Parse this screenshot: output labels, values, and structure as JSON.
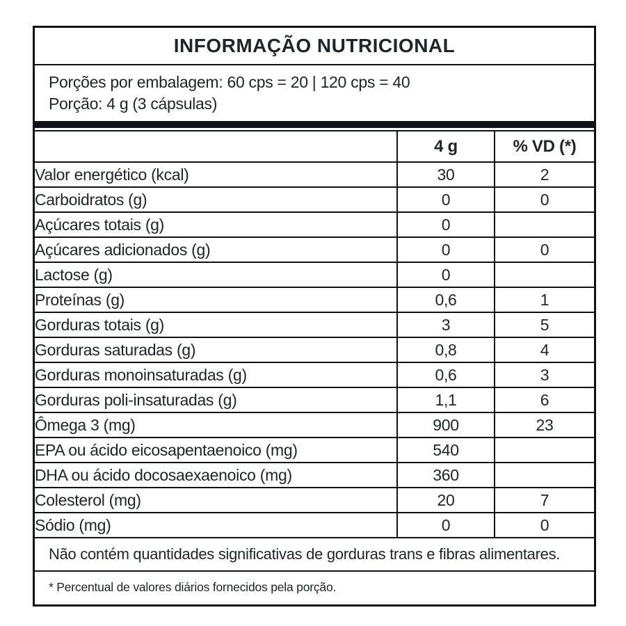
{
  "title": "INFORMAÇÃO NUTRICIONAL",
  "serving_info": {
    "line1": "Porções por embalagem: 60 cps = 20 | 120 cps = 40",
    "line2": "Porção: 4 g (3 cápsulas)"
  },
  "table": {
    "columns": [
      "",
      "4 g",
      "% VD (*)"
    ],
    "rows": [
      {
        "label": "Valor energético (kcal)",
        "amount": "30",
        "vd": "2",
        "indent": 0
      },
      {
        "label": "Carboidratos (g)",
        "amount": "0",
        "vd": "0",
        "indent": 0
      },
      {
        "label": "Açúcares totais (g)",
        "amount": "0",
        "vd": "",
        "indent": 2
      },
      {
        "label": "Açúcares adicionados (g)",
        "amount": "0",
        "vd": "0",
        "indent": 3
      },
      {
        "label": "Lactose (g)",
        "amount": "0",
        "vd": "",
        "indent": 3
      },
      {
        "label": "Proteínas (g)",
        "amount": "0,6",
        "vd": "1",
        "indent": 0
      },
      {
        "label": "Gorduras totais (g)",
        "amount": "3",
        "vd": "5",
        "indent": 0
      },
      {
        "label": "Gorduras saturadas (g)",
        "amount": "0,8",
        "vd": "4",
        "indent": 1
      },
      {
        "label": "Gorduras monoinsaturadas (g)",
        "amount": "0,6",
        "vd": "3",
        "indent": 1
      },
      {
        "label": "Gorduras poli-insaturadas (g)",
        "amount": "1,1",
        "vd": "6",
        "indent": 1
      },
      {
        "label": "Ômega 3 (mg)",
        "amount": "900",
        "vd": "23",
        "indent": 2
      },
      {
        "label": "EPA ou ácido eicosapentaenoico (mg)",
        "amount": "540",
        "vd": "",
        "indent": 3
      },
      {
        "label": "DHA ou ácido docosaexaenoico (mg)",
        "amount": "360",
        "vd": "",
        "indent": 3
      },
      {
        "label": "Colesterol (mg)",
        "amount": "20",
        "vd": "7",
        "indent": 1
      },
      {
        "label": "Sódio (mg)",
        "amount": "0",
        "vd": "0",
        "indent": 0
      }
    ]
  },
  "notes": {
    "no_significant": "Não contém quantidades significativas de gorduras trans e  fibras alimentares.",
    "footnote": "* Percentual de valores diários fornecidos pela porção."
  },
  "colors": {
    "border": "#101216",
    "text": "#20242b",
    "background": "#ffffff"
  }
}
